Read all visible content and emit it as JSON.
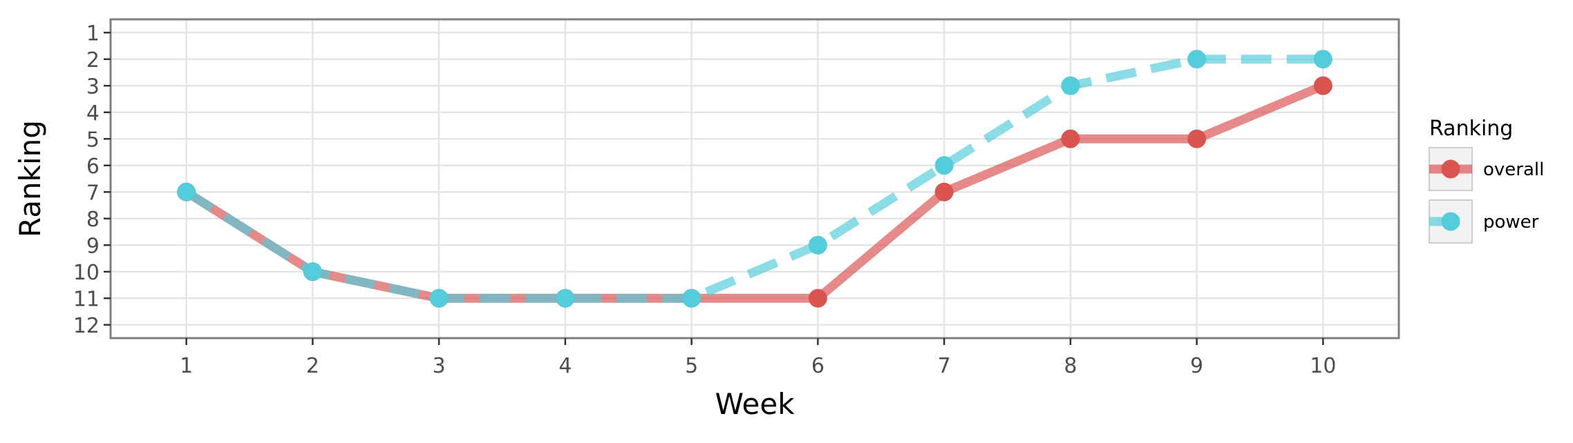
{
  "chart_data": {
    "type": "line",
    "title": "",
    "xlabel": "Week",
    "ylabel": "Ranking",
    "x": [
      1,
      2,
      3,
      4,
      5,
      6,
      7,
      8,
      9,
      10
    ],
    "xlim": [
      0.4,
      10.6
    ],
    "ylim": [
      12.5,
      0.5
    ],
    "y_reversed": true,
    "x_ticks": [
      "1",
      "2",
      "3",
      "4",
      "5",
      "6",
      "7",
      "8",
      "9",
      "10"
    ],
    "y_ticks": [
      "1",
      "2",
      "3",
      "4",
      "5",
      "6",
      "7",
      "8",
      "9",
      "10",
      "11",
      "12"
    ],
    "grid": true,
    "legend": {
      "title": "Ranking",
      "placement": "right"
    },
    "series": [
      {
        "name": "overall",
        "values": [
          7,
          10,
          11,
          11,
          11,
          11,
          7,
          5,
          5,
          3
        ],
        "color": "#d9534f",
        "line_style": "solid"
      },
      {
        "name": "power",
        "values": [
          7,
          10,
          11,
          11,
          11,
          9,
          6,
          3,
          2,
          2
        ],
        "color": "#53ccdb",
        "line_style": "dashed"
      }
    ]
  }
}
